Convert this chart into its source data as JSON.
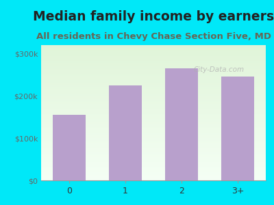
{
  "title": "Median family income by earners",
  "subtitle": "All residents in Chevy Chase Section Five, MD",
  "categories": [
    "0",
    "1",
    "2",
    "3+"
  ],
  "values": [
    155000,
    225000,
    265000,
    245000
  ],
  "bar_color": "#b8a0cc",
  "title_fontsize": 13.5,
  "subtitle_fontsize": 9.5,
  "title_color": "#222222",
  "subtitle_color": "#666655",
  "ytick_labels": [
    "$0",
    "$100k",
    "$200k",
    "$300k"
  ],
  "ytick_values": [
    0,
    100000,
    200000,
    300000
  ],
  "ylim": [
    0,
    320000
  ],
  "bg_outer_color": "#00e8f8",
  "watermark": "City-Data.com"
}
